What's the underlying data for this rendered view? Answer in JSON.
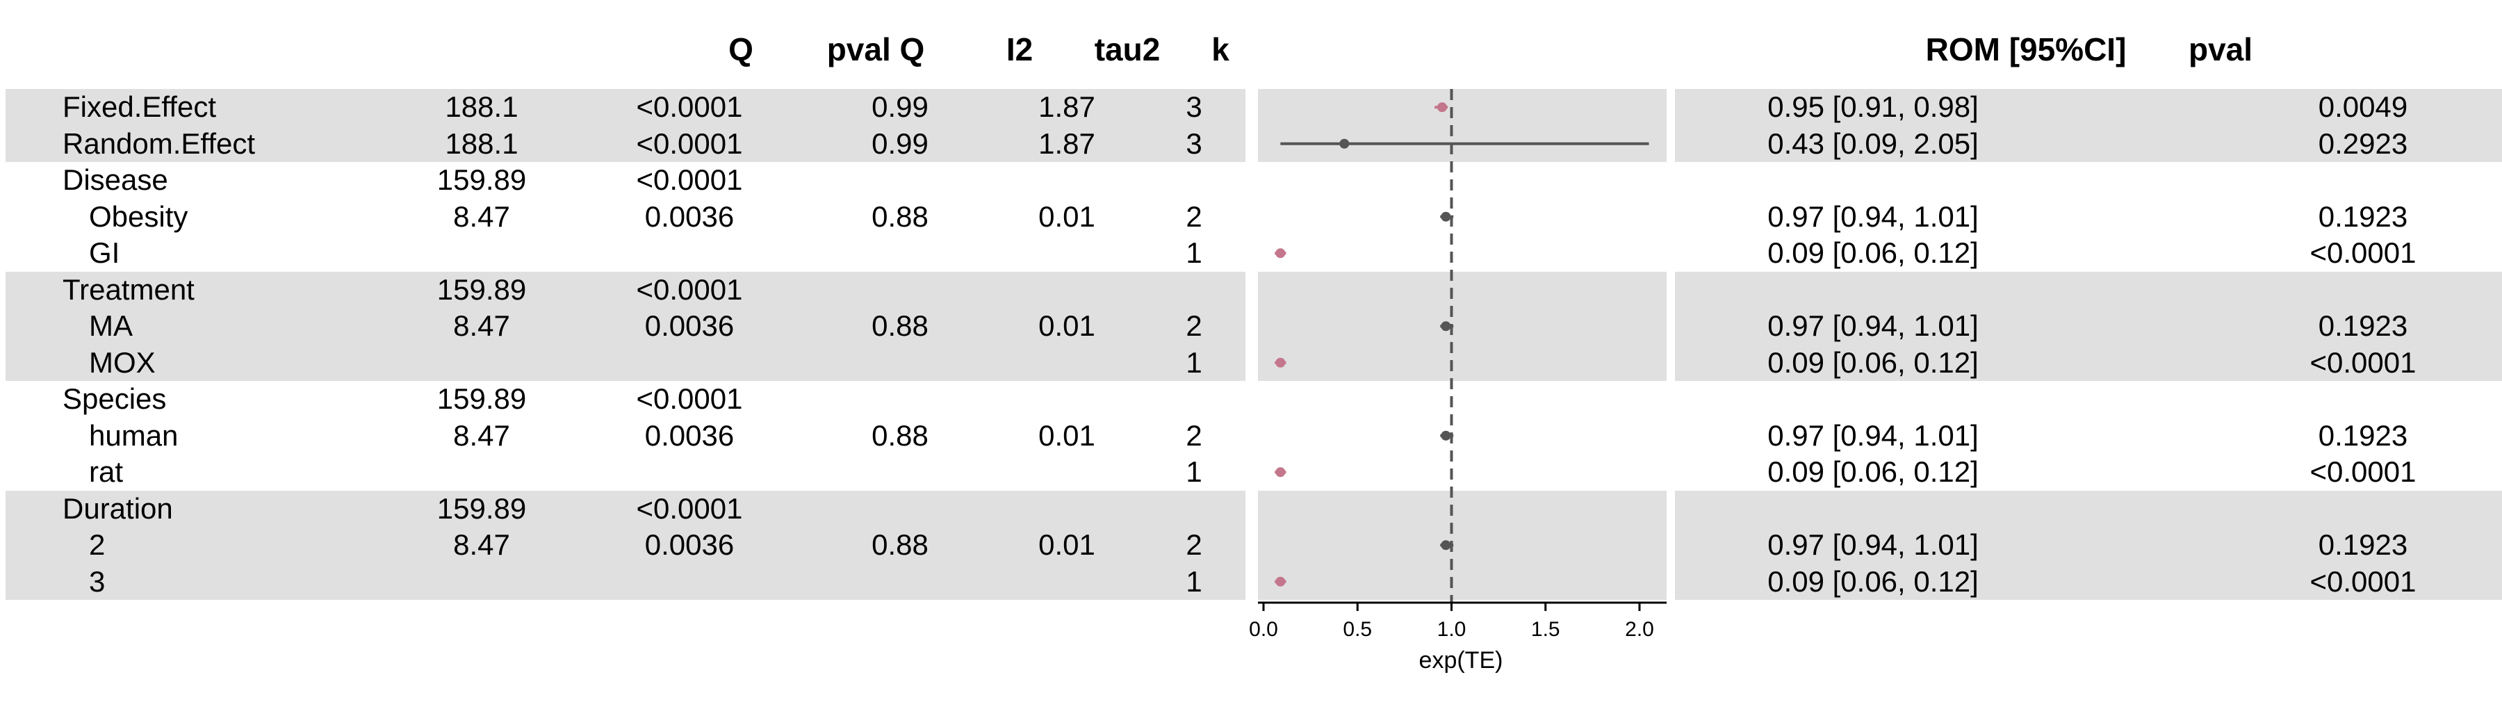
{
  "header": {
    "q": "Q",
    "pval_q": "pval Q",
    "i2": "I2",
    "tau2": "tau2",
    "k": "k",
    "rom": "ROM [95%CI]",
    "pval": "pval"
  },
  "rows": [
    {
      "label": "Fixed.Effect",
      "indent": 0,
      "shaded": true,
      "c1": "188.1",
      "c2": "<0.0001",
      "c3": "0.99",
      "c4": "1.87",
      "k": "3",
      "ci": "0.95 [0.91, 0.98]",
      "pval": "0.0049"
    },
    {
      "label": "Random.Effect",
      "indent": 0,
      "shaded": true,
      "c1": "188.1",
      "c2": "<0.0001",
      "c3": "0.99",
      "c4": "1.87",
      "k": "3",
      "ci": "0.43 [0.09, 2.05]",
      "pval": "0.2923"
    },
    {
      "label": "Disease",
      "indent": 0,
      "shaded": false,
      "c1": "159.89",
      "c2": "<0.0001",
      "c3": "",
      "c4": "",
      "k": "",
      "ci": "",
      "pval": ""
    },
    {
      "label": "Obesity",
      "indent": 1,
      "shaded": false,
      "c1": "8.47",
      "c2": "0.0036",
      "c3": "0.88",
      "c4": "0.01",
      "k": "2",
      "ci": "0.97 [0.94, 1.01]",
      "pval": "0.1923"
    },
    {
      "label": "GI",
      "indent": 1,
      "shaded": false,
      "c1": "",
      "c2": "",
      "c3": "",
      "c4": "",
      "k": "1",
      "ci": "0.09 [0.06, 0.12]",
      "pval": "<0.0001"
    },
    {
      "label": "Treatment",
      "indent": 0,
      "shaded": true,
      "c1": "159.89",
      "c2": "<0.0001",
      "c3": "",
      "c4": "",
      "k": "",
      "ci": "",
      "pval": ""
    },
    {
      "label": "MA",
      "indent": 1,
      "shaded": true,
      "c1": "8.47",
      "c2": "0.0036",
      "c3": "0.88",
      "c4": "0.01",
      "k": "2",
      "ci": "0.97 [0.94, 1.01]",
      "pval": "0.1923"
    },
    {
      "label": "MOX",
      "indent": 1,
      "shaded": true,
      "c1": "",
      "c2": "",
      "c3": "",
      "c4": "",
      "k": "1",
      "ci": "0.09 [0.06, 0.12]",
      "pval": "<0.0001"
    },
    {
      "label": "Species",
      "indent": 0,
      "shaded": false,
      "c1": "159.89",
      "c2": "<0.0001",
      "c3": "",
      "c4": "",
      "k": "",
      "ci": "",
      "pval": ""
    },
    {
      "label": "human",
      "indent": 1,
      "shaded": false,
      "c1": "8.47",
      "c2": "0.0036",
      "c3": "0.88",
      "c4": "0.01",
      "k": "2",
      "ci": "0.97 [0.94, 1.01]",
      "pval": "0.1923"
    },
    {
      "label": "rat",
      "indent": 1,
      "shaded": false,
      "c1": "",
      "c2": "",
      "c3": "",
      "c4": "",
      "k": "1",
      "ci": "0.09 [0.06, 0.12]",
      "pval": "<0.0001"
    },
    {
      "label": "Duration",
      "indent": 0,
      "shaded": true,
      "c1": "159.89",
      "c2": "<0.0001",
      "c3": "",
      "c4": "",
      "k": "",
      "ci": "",
      "pval": ""
    },
    {
      "label": "2",
      "indent": 1,
      "shaded": true,
      "c1": "8.47",
      "c2": "0.0036",
      "c3": "0.88",
      "c4": "0.01",
      "k": "2",
      "ci": "0.97 [0.94, 1.01]",
      "pval": "0.1923"
    },
    {
      "label": "3",
      "indent": 1,
      "shaded": true,
      "c1": "",
      "c2": "",
      "c3": "",
      "c4": "",
      "k": "1",
      "ci": "0.09 [0.06, 0.12]",
      "pval": "<0.0001"
    }
  ],
  "chart_data": {
    "type": "forest",
    "xlabel": "exp(TE)",
    "xlim": [
      0.0,
      2.15
    ],
    "ticks": [
      0.0,
      0.5,
      1.0,
      1.5,
      2.0
    ],
    "tick_labels": [
      "0.0",
      "0.5",
      "1.0",
      "1.5",
      "2.0"
    ],
    "reference_line": 1.0,
    "points": [
      {
        "row": 0,
        "est": 0.95,
        "lo": 0.91,
        "hi": 0.98,
        "color": "#c4768c"
      },
      {
        "row": 1,
        "est": 0.43,
        "lo": 0.09,
        "hi": 2.05,
        "color": "#555555"
      },
      {
        "row": 3,
        "est": 0.97,
        "lo": 0.94,
        "hi": 1.01,
        "color": "#555555"
      },
      {
        "row": 4,
        "est": 0.09,
        "lo": 0.06,
        "hi": 0.12,
        "color": "#c4768c"
      },
      {
        "row": 6,
        "est": 0.97,
        "lo": 0.94,
        "hi": 1.01,
        "color": "#555555"
      },
      {
        "row": 7,
        "est": 0.09,
        "lo": 0.06,
        "hi": 0.12,
        "color": "#c4768c"
      },
      {
        "row": 9,
        "est": 0.97,
        "lo": 0.94,
        "hi": 1.01,
        "color": "#555555"
      },
      {
        "row": 10,
        "est": 0.09,
        "lo": 0.06,
        "hi": 0.12,
        "color": "#c4768c"
      },
      {
        "row": 12,
        "est": 0.97,
        "lo": 0.94,
        "hi": 1.01,
        "color": "#555555"
      },
      {
        "row": 13,
        "est": 0.09,
        "lo": 0.06,
        "hi": 0.12,
        "color": "#c4768c"
      }
    ]
  }
}
